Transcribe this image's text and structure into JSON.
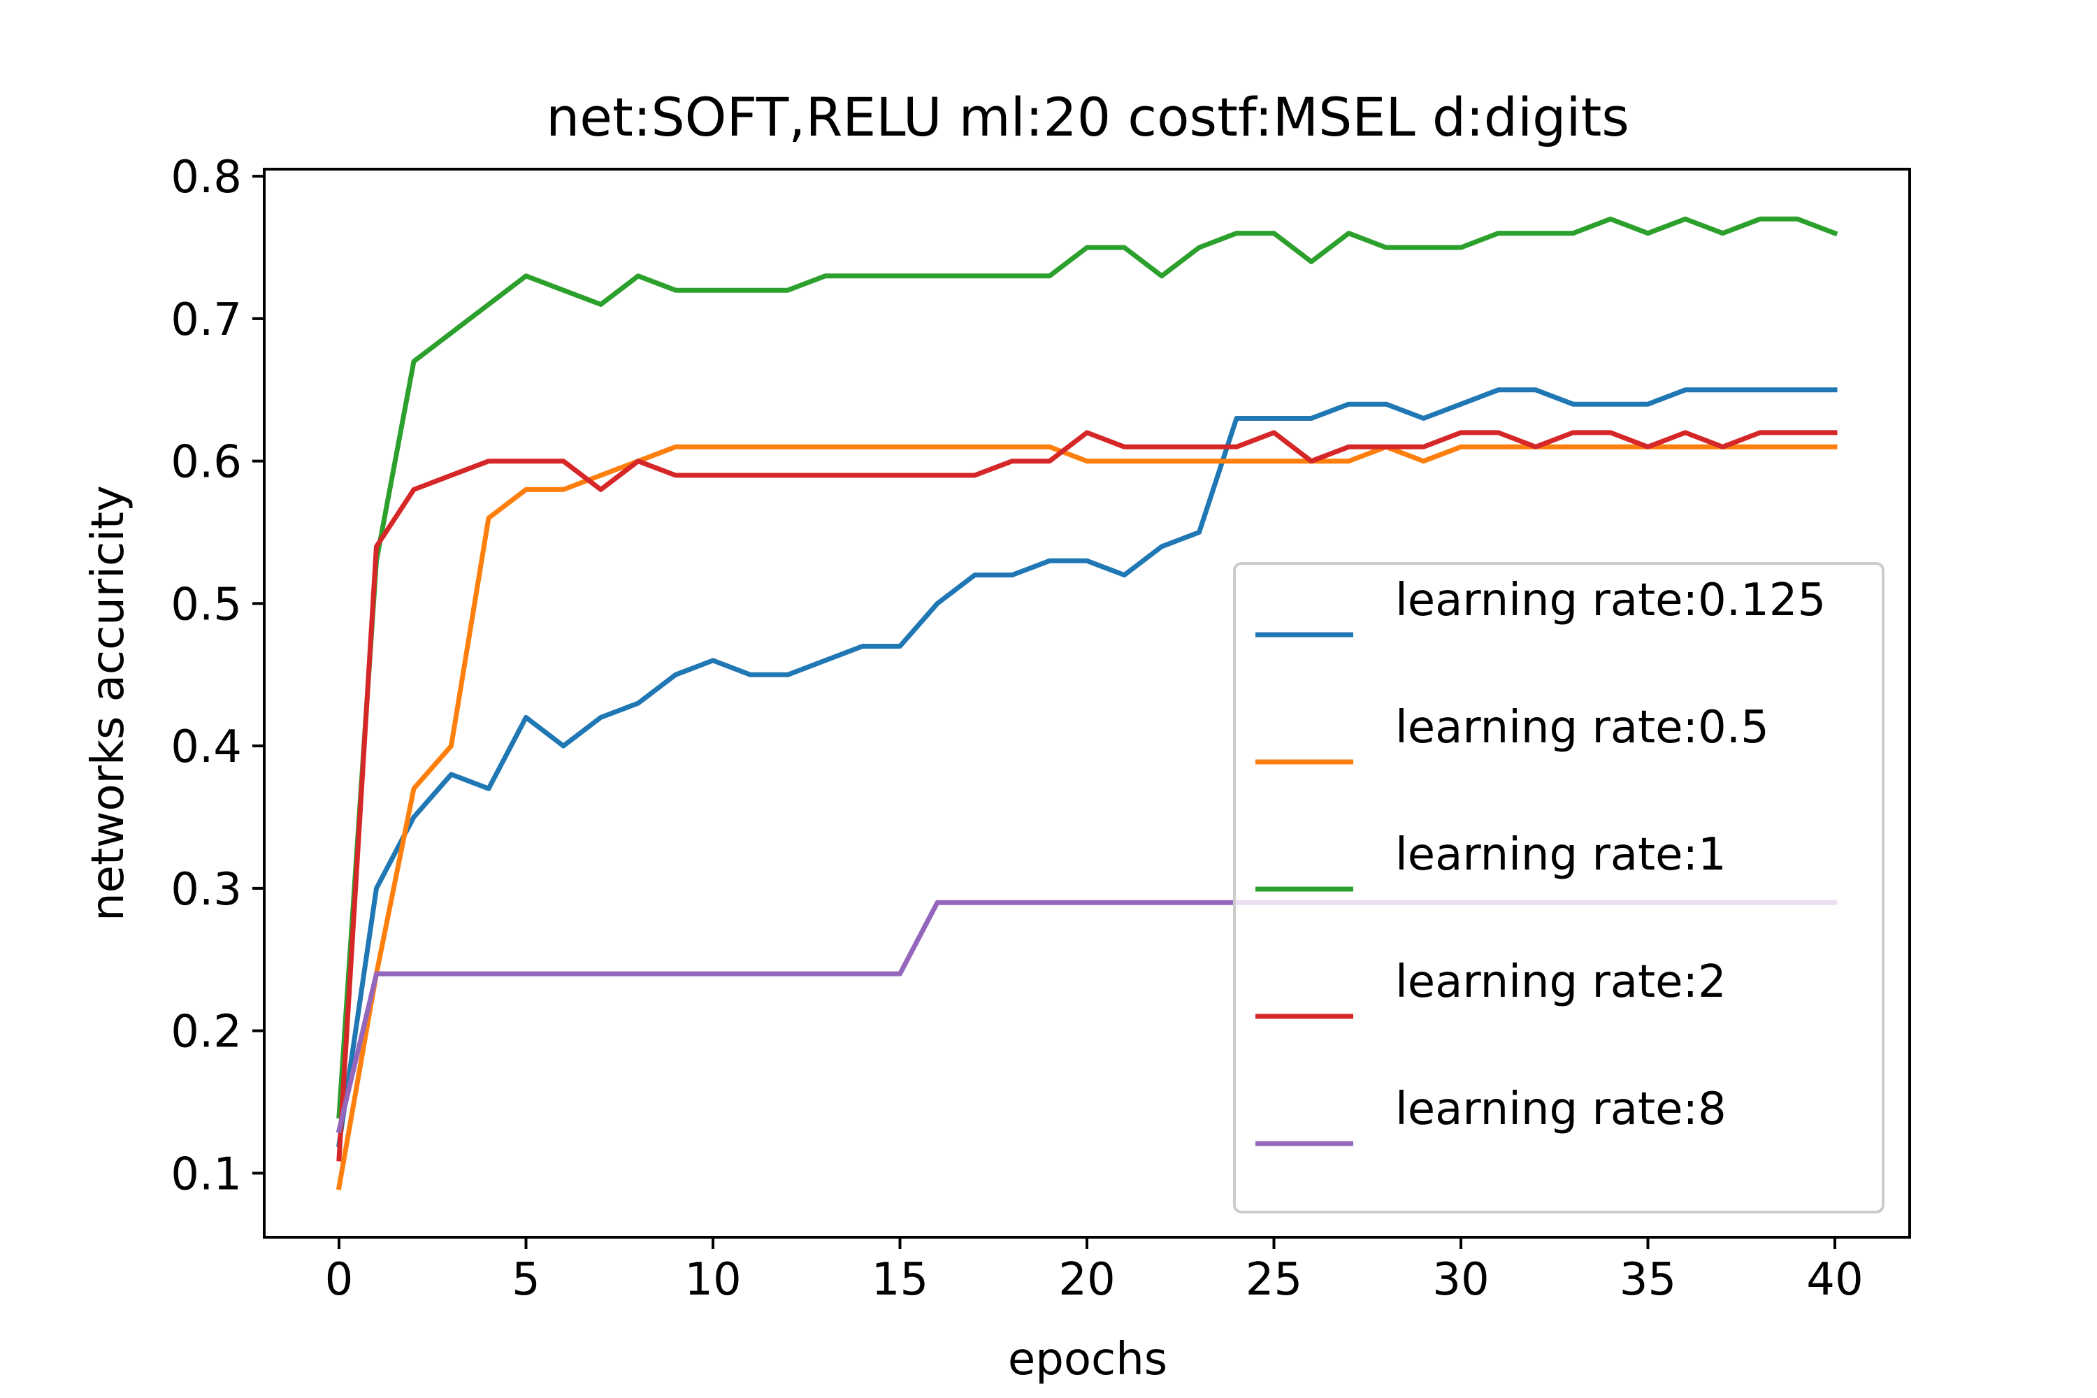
{
  "chart_data": {
    "type": "line",
    "title": "net:SOFT,RELU ml:20 costf:MSEL d:digits",
    "xlabel": "epochs",
    "ylabel": "networks accuricity",
    "xlim": [
      -2,
      42
    ],
    "ylim": [
      0.055,
      0.805
    ],
    "xticks": [
      0,
      5,
      10,
      15,
      20,
      25,
      30,
      35,
      40
    ],
    "yticks": [
      0.1,
      0.2,
      0.3,
      0.4,
      0.5,
      0.6,
      0.7,
      0.8
    ],
    "grid": false,
    "legend_position": "center-right",
    "x": [
      0,
      1,
      2,
      3,
      4,
      5,
      6,
      7,
      8,
      9,
      10,
      11,
      12,
      13,
      14,
      15,
      16,
      17,
      18,
      19,
      20,
      21,
      22,
      23,
      24,
      25,
      26,
      27,
      28,
      29,
      30,
      31,
      32,
      33,
      34,
      35,
      36,
      37,
      38,
      39,
      40
    ],
    "series": [
      {
        "name": "learning rate:0.125",
        "color": "#1f77b4",
        "values": [
          0.12,
          0.3,
          0.35,
          0.38,
          0.37,
          0.42,
          0.4,
          0.42,
          0.43,
          0.45,
          0.46,
          0.45,
          0.45,
          0.46,
          0.47,
          0.47,
          0.5,
          0.52,
          0.52,
          0.53,
          0.53,
          0.52,
          0.54,
          0.55,
          0.63,
          0.63,
          0.63,
          0.64,
          0.64,
          0.63,
          0.64,
          0.65,
          0.65,
          0.64,
          0.64,
          0.64,
          0.65,
          0.65,
          0.65,
          0.65,
          0.65
        ]
      },
      {
        "name": "learning rate:0.5",
        "color": "#ff7f0e",
        "values": [
          0.09,
          0.24,
          0.37,
          0.4,
          0.56,
          0.58,
          0.58,
          0.59,
          0.6,
          0.61,
          0.61,
          0.61,
          0.61,
          0.61,
          0.61,
          0.61,
          0.61,
          0.61,
          0.61,
          0.61,
          0.6,
          0.6,
          0.6,
          0.6,
          0.6,
          0.6,
          0.6,
          0.6,
          0.61,
          0.6,
          0.61,
          0.61,
          0.61,
          0.61,
          0.61,
          0.61,
          0.61,
          0.61,
          0.61,
          0.61,
          0.61
        ]
      },
      {
        "name": "learning rate:1",
        "color": "#2ca02c",
        "values": [
          0.14,
          0.53,
          0.67,
          0.69,
          0.71,
          0.73,
          0.72,
          0.71,
          0.73,
          0.72,
          0.72,
          0.72,
          0.72,
          0.73,
          0.73,
          0.73,
          0.73,
          0.73,
          0.73,
          0.73,
          0.75,
          0.75,
          0.73,
          0.75,
          0.76,
          0.76,
          0.74,
          0.76,
          0.75,
          0.75,
          0.75,
          0.76,
          0.76,
          0.76,
          0.77,
          0.76,
          0.77,
          0.76,
          0.77,
          0.77,
          0.76
        ]
      },
      {
        "name": "learning rate:2",
        "color": "#d62728",
        "values": [
          0.11,
          0.54,
          0.58,
          0.59,
          0.6,
          0.6,
          0.6,
          0.58,
          0.6,
          0.59,
          0.59,
          0.59,
          0.59,
          0.59,
          0.59,
          0.59,
          0.59,
          0.59,
          0.6,
          0.6,
          0.62,
          0.61,
          0.61,
          0.61,
          0.61,
          0.62,
          0.6,
          0.61,
          0.61,
          0.61,
          0.62,
          0.62,
          0.61,
          0.62,
          0.62,
          0.61,
          0.62,
          0.61,
          0.62,
          0.62,
          0.62
        ]
      },
      {
        "name": "learning rate:8",
        "color": "#9467bd",
        "values": [
          0.13,
          0.24,
          0.24,
          0.24,
          0.24,
          0.24,
          0.24,
          0.24,
          0.24,
          0.24,
          0.24,
          0.24,
          0.24,
          0.24,
          0.24,
          0.24,
          0.29,
          0.29,
          0.29,
          0.29,
          0.29,
          0.29,
          0.29,
          0.29,
          0.29,
          0.29,
          0.29,
          0.29,
          0.29,
          0.29,
          0.29,
          0.29,
          0.29,
          0.29,
          0.29,
          0.29,
          0.29,
          0.29,
          0.29,
          0.29,
          0.29
        ]
      }
    ]
  }
}
